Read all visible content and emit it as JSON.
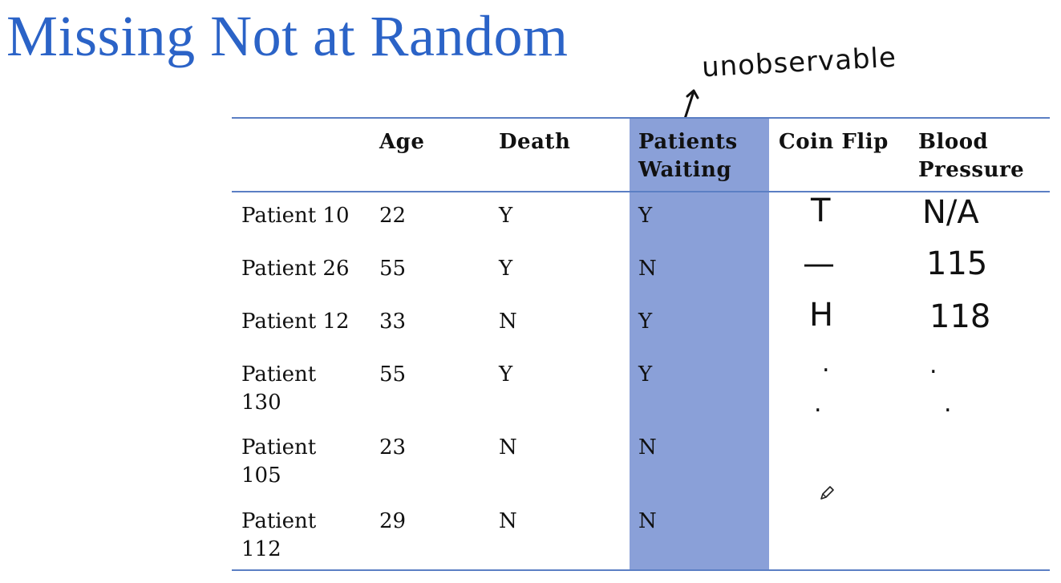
{
  "title": "Missing Not at Random",
  "annotation": "unobservable",
  "colors": {
    "title": "#2b63c7",
    "highlight_column": "#8aa0d8",
    "rule": "#5b7fc4"
  },
  "table": {
    "headers": [
      "Age",
      "Death",
      "Patients Waiting",
      "Coin Flip",
      "Blood Pressure"
    ],
    "rows": [
      {
        "patient": "Patient 10",
        "age": "22",
        "death": "Y",
        "waiting": "Y"
      },
      {
        "patient": "Patient 26",
        "age": "55",
        "death": "Y",
        "waiting": "N"
      },
      {
        "patient": "Patient 12",
        "age": "33",
        "death": "N",
        "waiting": "Y"
      },
      {
        "patient": "Patient 130",
        "age": "55",
        "death": "Y",
        "waiting": "Y"
      },
      {
        "patient": "Patient 105",
        "age": "23",
        "death": "N",
        "waiting": "N"
      },
      {
        "patient": "Patient 112",
        "age": "29",
        "death": "N",
        "waiting": "N"
      }
    ]
  },
  "handwritten": {
    "coin_flip": [
      "T",
      "—",
      "H",
      ".",
      "."
    ],
    "blood_pressure": [
      "N/A",
      "115",
      "118",
      ".",
      "."
    ]
  },
  "icons": [
    "pencil-cursor-icon",
    "up-arrow-icon"
  ]
}
